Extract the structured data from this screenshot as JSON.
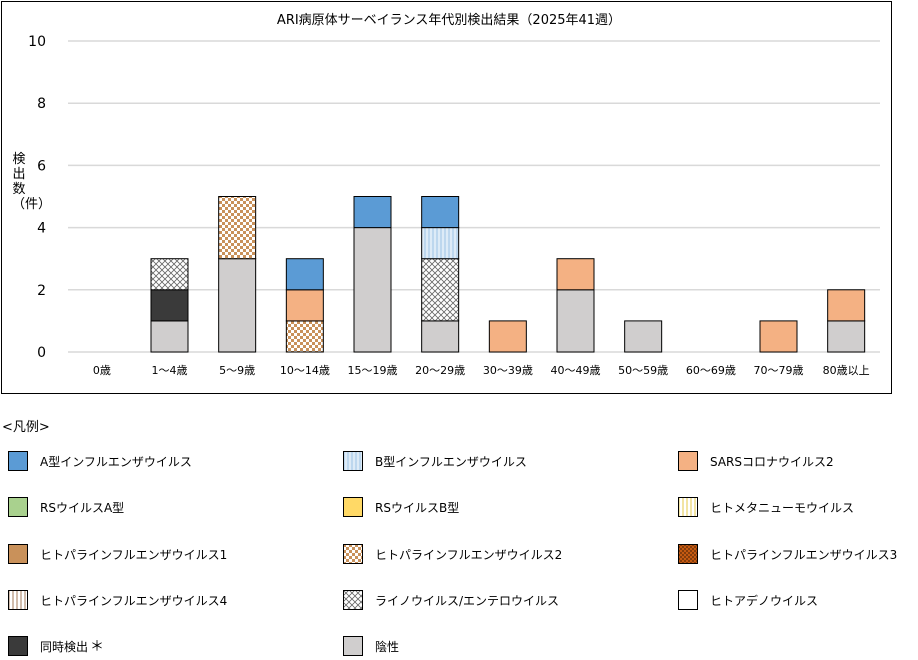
{
  "chart_data": {
    "type": "bar",
    "stacked": true,
    "title": "ARI病原体サーベイランス年代別検出結果（2025年41週）",
    "ylabel": "検出数（件）",
    "xlabel": "",
    "ylim": [
      0,
      10
    ],
    "yticks": [
      0,
      2,
      4,
      6,
      8,
      10
    ],
    "grid": true,
    "categories": [
      "0歳",
      "1～4歳",
      "5～9歳",
      "10～14歳",
      "15～19歳",
      "20～29歳",
      "30～39歳",
      "40～49歳",
      "50～59歳",
      "60～69歳",
      "70～79歳",
      "80歳以上"
    ],
    "series": [
      {
        "name": "陰性",
        "key": "neg",
        "values": [
          0,
          1,
          3,
          0,
          4,
          1,
          0,
          2,
          1,
          0,
          0,
          1
        ]
      },
      {
        "name": "同時検出",
        "key": "multi",
        "values": [
          0,
          1,
          0,
          0,
          0,
          0,
          0,
          0,
          0,
          0,
          0,
          0
        ]
      },
      {
        "name": "ヒトパラインフルエンザウイルス2",
        "key": "para2",
        "values": [
          0,
          0,
          2,
          1,
          0,
          0,
          0,
          0,
          0,
          0,
          0,
          0
        ]
      },
      {
        "name": "ライノウイルス/エンテロウイルス",
        "key": "rhino",
        "values": [
          0,
          1,
          0,
          0,
          0,
          2,
          0,
          0,
          0,
          0,
          0,
          0
        ]
      },
      {
        "name": "SARSコロナウイルス2",
        "key": "sars",
        "values": [
          0,
          0,
          0,
          1,
          0,
          0,
          1,
          1,
          0,
          0,
          1,
          1
        ]
      },
      {
        "name": "B型インフルエンザウイルス",
        "key": "fluB",
        "values": [
          0,
          0,
          0,
          0,
          0,
          1,
          0,
          0,
          0,
          0,
          0,
          0
        ]
      },
      {
        "name": "A型インフルエンザウイルス",
        "key": "fluA",
        "values": [
          0,
          0,
          0,
          1,
          1,
          1,
          0,
          0,
          0,
          0,
          0,
          0
        ]
      }
    ],
    "legend_title": "<凡例>",
    "legend": [
      {
        "label": "A型インフルエンザウイルス",
        "key": "fluA"
      },
      {
        "label": "B型インフルエンザウイルス",
        "key": "fluB"
      },
      {
        "label": "SARSコロナウイルス2",
        "key": "sars"
      },
      {
        "label": "RSウイルスA型",
        "key": "rsA"
      },
      {
        "label": "RSウイルスB型",
        "key": "rsB"
      },
      {
        "label": "ヒトメタニューモウイルス",
        "key": "hmpv"
      },
      {
        "label": "ヒトパラインフルエンザウイルス1",
        "key": "para1"
      },
      {
        "label": "ヒトパラインフルエンザウイルス2",
        "key": "para2"
      },
      {
        "label": "ヒトパラインフルエンザウイルス3",
        "key": "para3"
      },
      {
        "label": "ヒトパラインフルエンザウイルス4",
        "key": "para4"
      },
      {
        "label": "ライノウイルス/エンテロウイルス",
        "key": "rhino"
      },
      {
        "label": "ヒトアデノウイルス",
        "key": "adeno"
      },
      {
        "label": "同時検出",
        "key": "multi",
        "note": "＊"
      },
      {
        "label": "陰性",
        "key": "neg"
      }
    ],
    "colors": {
      "fluA": "#5b9bd5",
      "sars": "#f4b183",
      "rsA": "#a9d18e",
      "rsB": "#ffd966",
      "para1": "#c9915a",
      "neg": "#d0cece",
      "multi": "#3a3a3a",
      "adeno": "#ffffff"
    }
  }
}
